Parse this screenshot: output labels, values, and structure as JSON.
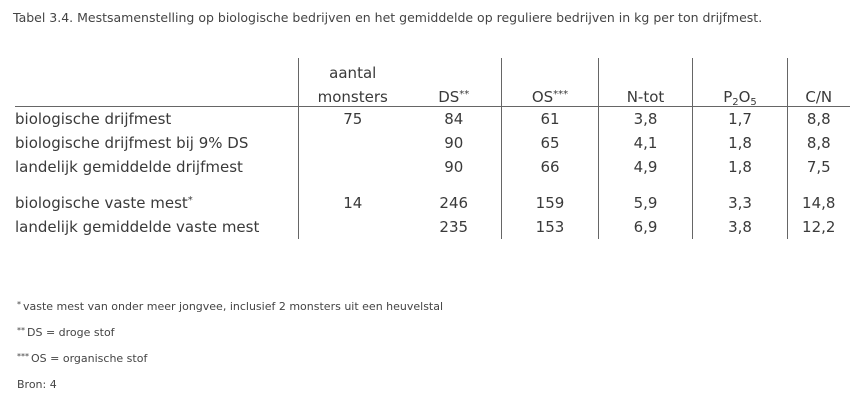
{
  "caption": "Tabel 3.4. Mestsamenstelling op biologische bedrijven en het gemiddelde op reguliere bedrijven in kg per ton drijfmest.",
  "table": {
    "header_top": "aantal",
    "headers": {
      "monsters": "monsters",
      "ds": "DS",
      "ds_mark": "**",
      "os": "OS",
      "os_mark": "***",
      "ntot": "N-tot",
      "p2o5_p": "P",
      "p2o5_2": "2",
      "p2o5_o": "O",
      "p2o5_5": "5",
      "cn": "C/N"
    },
    "rows": [
      {
        "label": "biologische drijfmest",
        "label_mark": "",
        "monsters": "75",
        "ds": "84",
        "os": "61",
        "ntot": "3,8",
        "p2o5": "1,7",
        "cn": "8,8"
      },
      {
        "label": "biologische drijfmest bij 9% DS",
        "label_mark": "",
        "monsters": "",
        "ds": "90",
        "os": "65",
        "ntot": "4,1",
        "p2o5": "1,8",
        "cn": "8,8"
      },
      {
        "label": "landelijk gemiddelde drijfmest",
        "label_mark": "",
        "monsters": "",
        "ds": "90",
        "os": "66",
        "ntot": "4,9",
        "p2o5": "1,8",
        "cn": "7,5"
      },
      {
        "label": "biologische vaste mest",
        "label_mark": "*",
        "monsters": "14",
        "ds": "246",
        "os": "159",
        "ntot": "5,9",
        "p2o5": "3,3",
        "cn": "14,8"
      },
      {
        "label": "landelijk gemiddelde vaste mest",
        "label_mark": "",
        "monsters": "",
        "ds": "235",
        "os": "153",
        "ntot": "6,9",
        "p2o5": "3,8",
        "cn": "12,2"
      }
    ]
  },
  "footnotes": [
    {
      "mark": "*",
      "text": "vaste mest van onder meer jongvee, inclusief 2 monsters uit een heuvelstal"
    },
    {
      "mark": "**",
      "text": "DS = droge stof"
    },
    {
      "mark": "***",
      "text": "OS = organische stof"
    },
    {
      "mark": "",
      "text": "Bron: 4"
    }
  ]
}
